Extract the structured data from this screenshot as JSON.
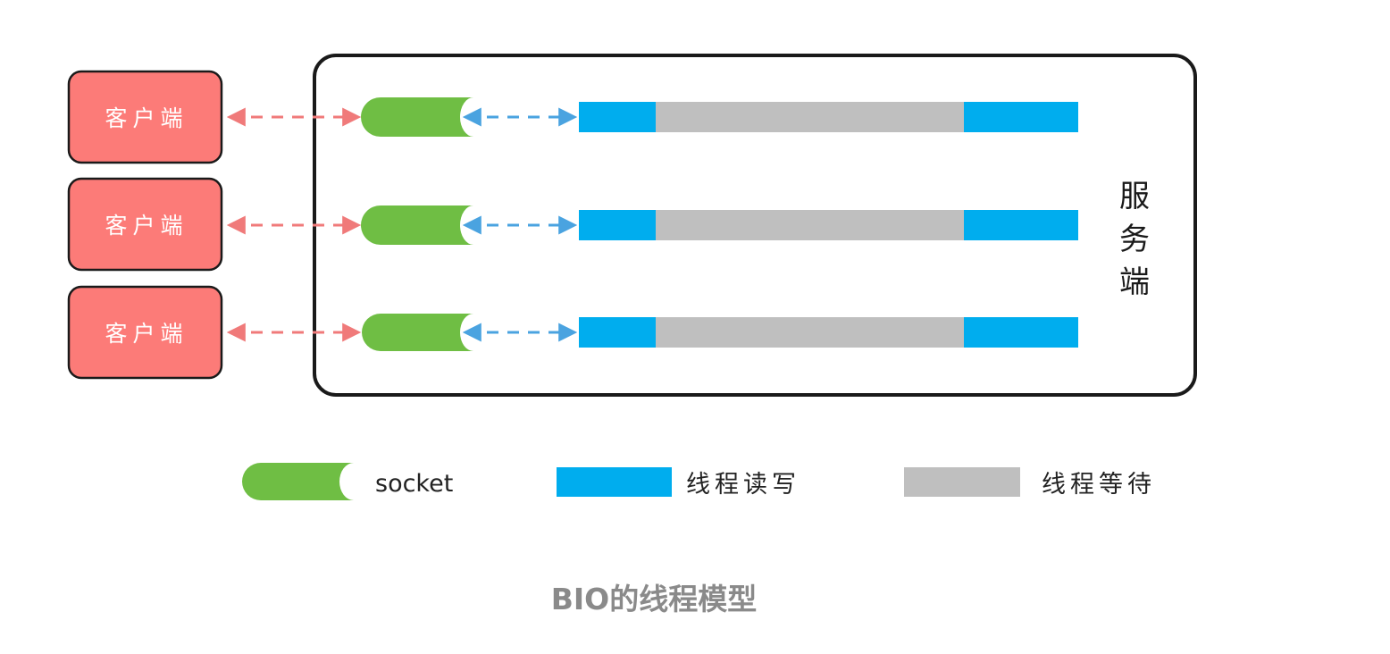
{
  "colors": {
    "client_fill": "#fc7b78",
    "socket": "#6fbe44",
    "thread_rw": "#00adee",
    "thread_wait": "#bfbfbf",
    "red_arrow": "#f07a7a",
    "blue_arrow": "#4aa3e0",
    "outline": "#1a1a1a",
    "caption": "#8a8a8a"
  },
  "clients": [
    {
      "label": "客户端"
    },
    {
      "label": "客户端"
    },
    {
      "label": "客户端"
    }
  ],
  "server": {
    "label_chars": [
      "服",
      "务",
      "端"
    ]
  },
  "legend": {
    "socket": "socket",
    "thread_rw": "线程读写",
    "thread_wait": "线程等待"
  },
  "caption": "BIO的线程模型"
}
